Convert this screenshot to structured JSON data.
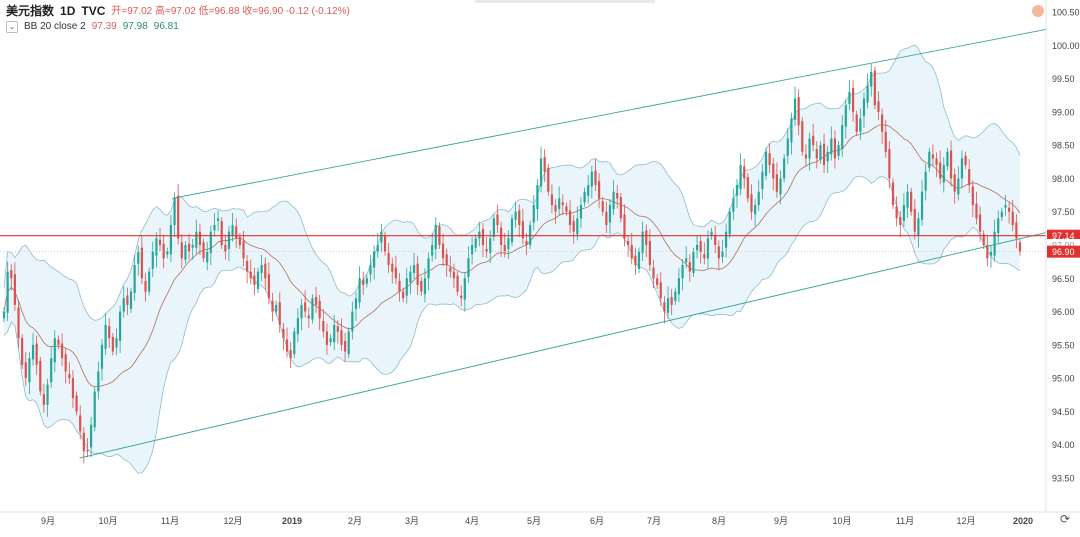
{
  "legend": {
    "symbol": "美元指数",
    "timeframe": "1D",
    "source": "TVC",
    "ohlc_text": "开=97.02  高=97.02  低=96.88  收=96.90  -0.12 (-0.12%)",
    "indicator_label": "BB 20 close 2",
    "bb_basis": "97.39",
    "bb_upper": "97.98",
    "bb_lower": "96.81"
  },
  "icons": {
    "collapse": "chevron-down-icon",
    "logo": "brand-dot-icon",
    "reset": "reset-scale-icon"
  },
  "colors": {
    "up": "#26a69a",
    "down": "#ef5350",
    "candle_body": "#d9534f",
    "bb_fill": "#dff1f8",
    "bb_band": "#8cbcd0",
    "bb_basis": "#b07060",
    "trendline": "#3aa59a",
    "hline": "#e03030",
    "price_label": "#e03030"
  },
  "chart_data": {
    "type": "candlestick",
    "ylim": [
      93.2,
      100.6
    ],
    "y_ticks": [
      "100.50",
      "100.00",
      "99.50",
      "99.00",
      "98.50",
      "98.00",
      "97.50",
      "97.00",
      "96.50",
      "96.00",
      "95.50",
      "95.00",
      "94.50",
      "94.00",
      "93.50"
    ],
    "x_ticks": [
      "9月",
      "10月",
      "11月",
      "12月",
      "2019",
      "2月",
      "3月",
      "4月",
      "5月",
      "6月",
      "7月",
      "8月",
      "9月",
      "10月",
      "11月",
      "12月",
      "2020"
    ],
    "price_labels": [
      "97.14",
      "97.00",
      "96.90"
    ],
    "horizontal_line": 97.14,
    "last_price": 96.9,
    "channel": {
      "upper": [
        {
          "date": "2018-11-08",
          "value": 97.7
        },
        {
          "date": "2019-12-31",
          "value": 100.25
        }
      ],
      "lower": [
        {
          "date": "2018-09-25",
          "value": 93.8
        },
        {
          "date": "2019-12-31",
          "value": 97.2
        }
      ]
    },
    "closes": [
      96.0,
      96.6,
      96.5,
      96.1,
      95.6,
      95.2,
      95.0,
      95.3,
      95.5,
      95.2,
      94.8,
      94.6,
      94.9,
      95.3,
      95.6,
      95.5,
      95.3,
      95.1,
      95.0,
      94.7,
      94.5,
      94.2,
      93.9,
      93.9,
      94.3,
      94.8,
      95.1,
      95.5,
      95.8,
      95.6,
      95.4,
      95.6,
      96.0,
      96.2,
      96.1,
      96.3,
      96.7,
      96.9,
      96.5,
      96.3,
      96.6,
      96.9,
      97.1,
      97.0,
      96.8,
      96.9,
      97.3,
      97.7,
      97.1,
      96.8,
      97.0,
      96.9,
      97.0,
      97.2,
      97.0,
      96.8,
      96.9,
      97.2,
      97.3,
      97.4,
      97.0,
      96.9,
      97.2,
      97.3,
      97.1,
      97.0,
      96.8,
      96.6,
      96.5,
      96.4,
      96.6,
      96.7,
      96.5,
      96.2,
      96.0,
      96.1,
      95.8,
      95.6,
      95.4,
      95.3,
      95.7,
      95.9,
      96.1,
      96.0,
      95.9,
      96.2,
      96.1,
      95.9,
      95.7,
      95.5,
      95.6,
      95.8,
      95.7,
      95.5,
      95.4,
      95.7,
      96.0,
      96.2,
      96.5,
      96.4,
      96.5,
      96.7,
      96.9,
      97.0,
      97.2,
      96.9,
      96.7,
      96.6,
      96.5,
      96.3,
      96.2,
      96.5,
      96.6,
      96.7,
      96.4,
      96.3,
      96.5,
      96.8,
      97.0,
      97.3,
      97.0,
      96.8,
      96.7,
      96.6,
      96.5,
      96.3,
      96.2,
      96.5,
      96.8,
      97.0,
      97.1,
      97.2,
      97.0,
      96.9,
      97.1,
      97.4,
      97.3,
      97.0,
      96.9,
      97.1,
      97.4,
      97.5,
      97.3,
      97.1,
      97.0,
      97.3,
      97.6,
      97.9,
      98.3,
      98.1,
      97.8,
      97.6,
      97.5,
      97.7,
      97.6,
      97.5,
      97.3,
      97.2,
      97.4,
      97.6,
      97.8,
      97.9,
      98.1,
      97.9,
      97.7,
      97.5,
      97.3,
      97.6,
      97.8,
      97.7,
      97.4,
      97.1,
      97.0,
      96.8,
      96.7,
      96.9,
      97.2,
      97.0,
      96.7,
      96.5,
      96.4,
      96.2,
      96.0,
      96.2,
      96.1,
      96.3,
      96.5,
      96.7,
      96.8,
      96.6,
      96.9,
      97.0,
      96.9,
      96.8,
      97.1,
      97.2,
      97.0,
      96.8,
      96.9,
      97.2,
      97.5,
      97.7,
      97.9,
      98.2,
      98.0,
      97.7,
      97.5,
      97.6,
      97.8,
      98.1,
      98.4,
      98.2,
      98.0,
      97.8,
      98.0,
      98.3,
      98.6,
      98.9,
      99.2,
      98.8,
      98.4,
      98.3,
      98.6,
      98.5,
      98.3,
      98.5,
      98.2,
      98.4,
      98.6,
      98.3,
      98.5,
      98.8,
      99.1,
      99.3,
      99.0,
      98.7,
      98.9,
      99.2,
      99.4,
      99.6,
      99.1,
      99.0,
      98.7,
      98.4,
      98.0,
      97.6,
      97.4,
      97.3,
      97.6,
      97.8,
      97.5,
      97.2,
      97.4,
      97.8,
      98.1,
      98.4,
      98.3,
      98.2,
      98.0,
      98.2,
      98.4,
      98.0,
      97.8,
      98.0,
      98.3,
      98.2,
      97.9,
      97.6,
      97.4,
      97.2,
      97.0,
      96.8,
      96.9,
      97.2,
      97.4,
      97.5,
      97.6,
      97.5,
      97.3,
      97.1,
      96.9
    ]
  }
}
